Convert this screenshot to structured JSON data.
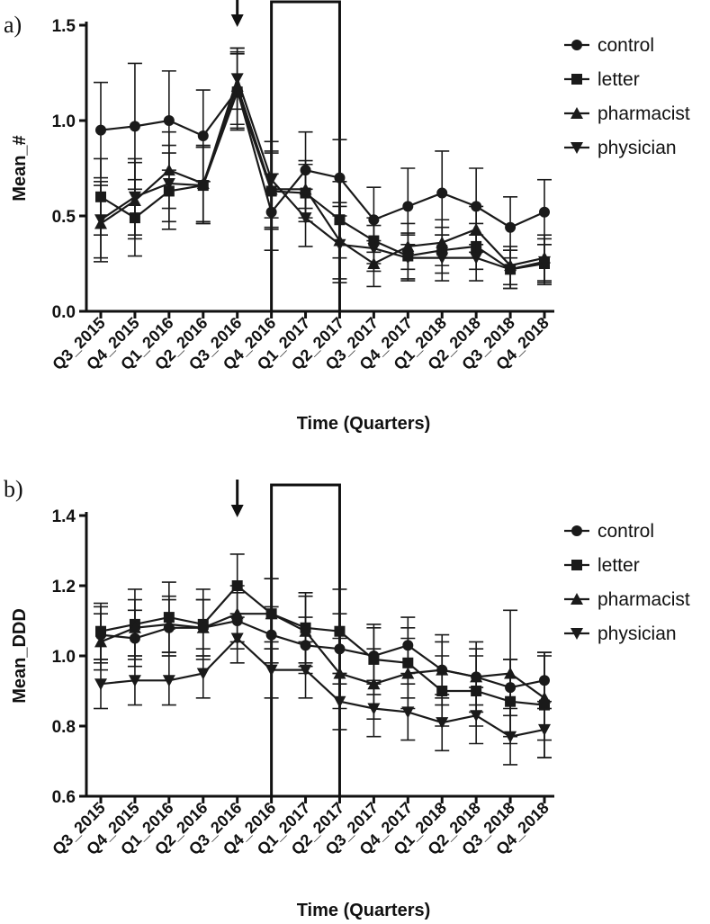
{
  "chart_data": [
    {
      "type": "line",
      "panel_label": "a)",
      "xlabel": "Time (Quarters)",
      "ylabel": "Mean_#",
      "ylim": [
        0.0,
        1.5
      ],
      "yticks": [
        "0.0",
        "0.5",
        "1.0",
        "1.5"
      ],
      "categories": [
        "Q3_2015",
        "Q4_2015",
        "Q1_2016",
        "Q2_2016",
        "Q3_2016",
        "Q4_2016",
        "Q1_2017",
        "Q2_2017",
        "Q3_2017",
        "Q4_2017",
        "Q1_2018",
        "Q2_2018",
        "Q3_2018",
        "Q4_2018"
      ],
      "legend": [
        "control",
        "letter",
        "pharmacist",
        "physician"
      ],
      "arrow_at": "Q3_2016",
      "box_range": [
        "Q4_2016",
        "Q2_2017"
      ],
      "series": [
        {
          "name": "control",
          "marker": "circle",
          "values": [
            0.95,
            0.97,
            1.0,
            0.92,
            1.16,
            0.52,
            0.74,
            0.7,
            0.48,
            0.55,
            0.62,
            0.55,
            0.44,
            0.52
          ],
          "err": [
            0.25,
            0.33,
            0.26,
            0.24,
            0.2,
            0.2,
            0.2,
            0.2,
            0.17,
            0.2,
            0.22,
            0.2,
            0.16,
            0.17
          ]
        },
        {
          "name": "letter",
          "marker": "square",
          "values": [
            0.6,
            0.49,
            0.63,
            0.66,
            1.15,
            0.63,
            0.62,
            0.48,
            0.37,
            0.29,
            0.32,
            0.34,
            0.22,
            0.25
          ],
          "err": [
            0.2,
            0.2,
            0.2,
            0.2,
            0.2,
            0.2,
            0.15,
            0.2,
            0.12,
            0.12,
            0.12,
            0.12,
            0.1,
            0.1
          ]
        },
        {
          "name": "pharmacist",
          "marker": "triangle-up",
          "values": [
            0.46,
            0.58,
            0.74,
            0.67,
            1.18,
            0.64,
            0.64,
            0.37,
            0.25,
            0.34,
            0.36,
            0.43,
            0.24,
            0.28
          ],
          "err": [
            0.2,
            0.2,
            0.2,
            0.2,
            0.2,
            0.2,
            0.15,
            0.2,
            0.12,
            0.12,
            0.12,
            0.12,
            0.1,
            0.12
          ]
        },
        {
          "name": "physician",
          "marker": "triangle-down",
          "values": [
            0.48,
            0.6,
            0.67,
            0.66,
            1.22,
            0.69,
            0.49,
            0.35,
            0.33,
            0.28,
            0.28,
            0.28,
            0.22,
            0.26
          ],
          "err": [
            0.2,
            0.2,
            0.2,
            0.2,
            0.16,
            0.2,
            0.15,
            0.2,
            0.12,
            0.12,
            0.12,
            0.12,
            0.1,
            0.12
          ]
        }
      ]
    },
    {
      "type": "line",
      "panel_label": "b)",
      "xlabel": "Time (Quarters)",
      "ylabel": "Mean_DDD",
      "ylim": [
        0.6,
        1.4
      ],
      "yticks": [
        "0.6",
        "0.8",
        "1.0",
        "1.2",
        "1.4"
      ],
      "categories": [
        "Q3_2015",
        "Q4_2015",
        "Q1_2016",
        "Q2_2016",
        "Q3_2016",
        "Q4_2016",
        "Q1_2017",
        "Q2_2017",
        "Q3_2017",
        "Q4_2017",
        "Q1_2018",
        "Q2_2018",
        "Q3_2018",
        "Q4_2018"
      ],
      "legend": [
        "control",
        "letter",
        "pharmacist",
        "physician"
      ],
      "arrow_at": "Q3_2016",
      "box_range": [
        "Q4_2016",
        "Q2_2017"
      ],
      "series": [
        {
          "name": "control",
          "marker": "circle",
          "values": [
            1.06,
            1.05,
            1.08,
            1.08,
            1.1,
            1.06,
            1.03,
            1.02,
            1.0,
            1.03,
            0.96,
            0.94,
            0.91,
            0.93
          ],
          "err": [
            0.08,
            0.08,
            0.08,
            0.08,
            0.08,
            0.08,
            0.08,
            0.1,
            0.08,
            0.08,
            0.08,
            0.08,
            0.08,
            0.08
          ]
        },
        {
          "name": "letter",
          "marker": "square",
          "values": [
            1.07,
            1.09,
            1.11,
            1.09,
            1.2,
            1.12,
            1.08,
            1.07,
            0.99,
            0.98,
            0.9,
            0.9,
            0.87,
            0.86
          ],
          "err": [
            0.08,
            0.1,
            0.1,
            0.1,
            0.09,
            0.1,
            0.1,
            0.12,
            0.1,
            0.1,
            0.1,
            0.1,
            0.12,
            0.15
          ]
        },
        {
          "name": "pharmacist",
          "marker": "triangle-up",
          "values": [
            1.04,
            1.08,
            1.09,
            1.08,
            1.12,
            1.12,
            1.07,
            0.95,
            0.92,
            0.95,
            0.96,
            0.94,
            0.95,
            0.88
          ],
          "err": [
            0.08,
            0.08,
            0.08,
            0.08,
            0.08,
            0.1,
            0.1,
            0.1,
            0.1,
            0.1,
            0.1,
            0.1,
            0.18,
            0.12
          ]
        },
        {
          "name": "physician",
          "marker": "triangle-down",
          "values": [
            0.92,
            0.93,
            0.93,
            0.95,
            1.05,
            0.96,
            0.96,
            0.87,
            0.85,
            0.84,
            0.81,
            0.83,
            0.77,
            0.79
          ],
          "err": [
            0.07,
            0.07,
            0.07,
            0.07,
            0.07,
            0.08,
            0.08,
            0.08,
            0.08,
            0.08,
            0.08,
            0.08,
            0.08,
            0.08
          ]
        }
      ]
    }
  ]
}
